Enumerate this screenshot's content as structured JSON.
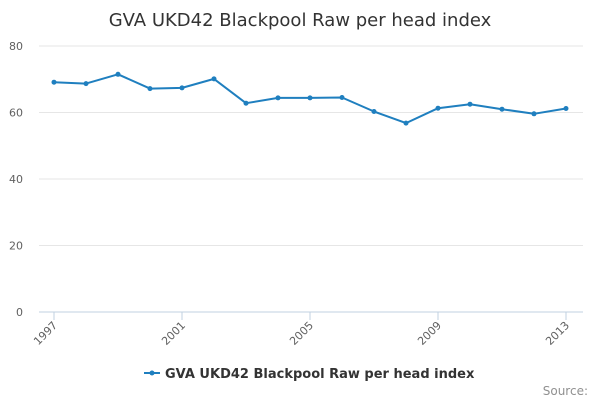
{
  "chart_data": {
    "type": "line",
    "title": "GVA UKD42 Blackpool Raw per head index",
    "xlabel": "",
    "ylabel": "",
    "x": [
      1997,
      1998,
      1999,
      2000,
      2001,
      2002,
      2003,
      2004,
      2005,
      2006,
      2007,
      2008,
      2009,
      2010,
      2011,
      2012,
      2013
    ],
    "x_tick_labels": [
      "1997",
      "2001",
      "2005",
      "2009",
      "2013"
    ],
    "y_tick_labels": [
      "0",
      "20",
      "40",
      "60",
      "80"
    ],
    "ylim": [
      0,
      80
    ],
    "grid": "horizontal",
    "legend_position": "bottom",
    "series": [
      {
        "name": "GVA UKD42 Blackpool Raw per head index",
        "color": "#1f7fbf",
        "values": [
          69.1,
          68.7,
          71.5,
          67.2,
          67.4,
          70.1,
          62.8,
          64.4,
          64.4,
          64.5,
          60.3,
          56.8,
          61.3,
          62.5,
          61.0,
          59.6,
          61.2
        ]
      }
    ]
  },
  "credits": "Source:"
}
